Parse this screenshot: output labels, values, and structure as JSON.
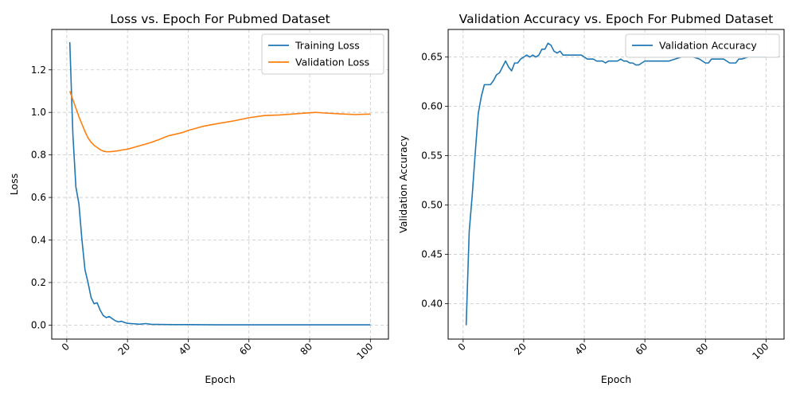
{
  "figure": {
    "width": 1000,
    "height": 500
  },
  "chart_data": [
    {
      "type": "line",
      "title": "Loss vs. Epoch For Pubmed Dataset",
      "xlabel": "Epoch",
      "ylabel": "Loss",
      "xlim": [
        -4.95,
        105.95
      ],
      "ylim": [
        -0.066,
        1.39
      ],
      "xticks": [
        0,
        20,
        40,
        60,
        80,
        100
      ],
      "xtick_labels": [
        "0",
        "20",
        "40",
        "60",
        "80",
        "100"
      ],
      "yticks": [
        0.0,
        0.2,
        0.4,
        0.6,
        0.8,
        1.0,
        1.2
      ],
      "ytick_labels": [
        "0.0",
        "0.2",
        "0.4",
        "0.6",
        "0.8",
        "1.0",
        "1.2"
      ],
      "grid": true,
      "legend": "top-right",
      "series": [
        {
          "name": "Training Loss",
          "color": "#1f77b4",
          "x": [
            1,
            2,
            3,
            4,
            5,
            6,
            7,
            8,
            9,
            10,
            11,
            12,
            13,
            14,
            15,
            16,
            17,
            18,
            19,
            20,
            22,
            24,
            26,
            28,
            30,
            35,
            40,
            50,
            60,
            70,
            80,
            90,
            100
          ],
          "y": [
            1.33,
            0.9,
            0.65,
            0.57,
            0.4,
            0.26,
            0.2,
            0.13,
            0.1,
            0.105,
            0.07,
            0.045,
            0.035,
            0.04,
            0.03,
            0.02,
            0.015,
            0.018,
            0.012,
            0.008,
            0.006,
            0.004,
            0.007,
            0.003,
            0.003,
            0.002,
            0.002,
            0.001,
            0.001,
            0.001,
            0.001,
            0.001,
            0.001
          ]
        },
        {
          "name": "Validation Loss",
          "color": "#ff7f0e",
          "x": [
            1,
            2,
            3,
            4,
            5,
            6,
            7,
            8,
            9,
            10,
            11,
            12,
            13,
            14,
            15,
            16,
            17,
            18,
            20,
            22,
            24,
            26,
            28,
            30,
            32,
            34,
            36,
            38,
            40,
            45,
            50,
            55,
            60,
            65,
            70,
            75,
            80,
            82,
            85,
            90,
            95,
            100
          ],
          "y": [
            1.1,
            1.06,
            1.02,
            0.98,
            0.945,
            0.91,
            0.88,
            0.86,
            0.845,
            0.835,
            0.825,
            0.818,
            0.815,
            0.815,
            0.816,
            0.818,
            0.82,
            0.823,
            0.827,
            0.835,
            0.843,
            0.851,
            0.86,
            0.87,
            0.882,
            0.892,
            0.898,
            0.905,
            0.915,
            0.935,
            0.948,
            0.96,
            0.975,
            0.985,
            0.988,
            0.993,
            0.998,
            1.0,
            0.997,
            0.993,
            0.99,
            0.992
          ]
        }
      ]
    },
    {
      "type": "line",
      "title": "Validation Accuracy vs. Epoch For Pubmed Dataset",
      "xlabel": "Epoch",
      "ylabel": "Validation Accuracy",
      "xlim": [
        -4.95,
        105.95
      ],
      "ylim": [
        0.364,
        0.678
      ],
      "xticks": [
        0,
        20,
        40,
        60,
        80,
        100
      ],
      "xtick_labels": [
        "0",
        "20",
        "40",
        "60",
        "80",
        "100"
      ],
      "yticks": [
        0.4,
        0.45,
        0.5,
        0.55,
        0.6,
        0.65
      ],
      "ytick_labels": [
        "0.40",
        "0.45",
        "0.50",
        "0.55",
        "0.60",
        "0.65"
      ],
      "grid": true,
      "legend": "top-right",
      "series": [
        {
          "name": "Validation Accuracy",
          "color": "#1f77b4",
          "x": [
            1,
            2,
            3,
            4,
            5,
            6,
            7,
            8,
            9,
            10,
            11,
            12,
            13,
            14,
            15,
            16,
            17,
            18,
            19,
            20,
            21,
            22,
            23,
            24,
            25,
            26,
            27,
            28,
            29,
            30,
            31,
            32,
            33,
            34,
            35,
            36,
            37,
            38,
            39,
            40,
            41,
            42,
            43,
            44,
            45,
            46,
            47,
            48,
            49,
            50,
            51,
            52,
            53,
            54,
            55,
            56,
            57,
            58,
            59,
            60,
            62,
            64,
            66,
            68,
            70,
            72,
            74,
            76,
            78,
            80,
            81,
            82,
            84,
            86,
            88,
            90,
            91,
            92,
            94,
            96,
            98,
            100
          ],
          "y": [
            0.378,
            0.473,
            0.51,
            0.553,
            0.593,
            0.61,
            0.622,
            0.622,
            0.622,
            0.626,
            0.632,
            0.634,
            0.64,
            0.646,
            0.64,
            0.636,
            0.644,
            0.644,
            0.648,
            0.65,
            0.652,
            0.65,
            0.652,
            0.65,
            0.652,
            0.658,
            0.658,
            0.664,
            0.662,
            0.656,
            0.654,
            0.656,
            0.652,
            0.652,
            0.652,
            0.652,
            0.652,
            0.652,
            0.652,
            0.65,
            0.648,
            0.648,
            0.648,
            0.646,
            0.646,
            0.646,
            0.644,
            0.646,
            0.646,
            0.646,
            0.646,
            0.648,
            0.646,
            0.646,
            0.644,
            0.644,
            0.642,
            0.642,
            0.644,
            0.646,
            0.646,
            0.646,
            0.646,
            0.646,
            0.648,
            0.65,
            0.65,
            0.65,
            0.648,
            0.644,
            0.644,
            0.648,
            0.648,
            0.648,
            0.644,
            0.644,
            0.648,
            0.648,
            0.65,
            0.65,
            0.65,
            0.65
          ]
        }
      ]
    }
  ]
}
